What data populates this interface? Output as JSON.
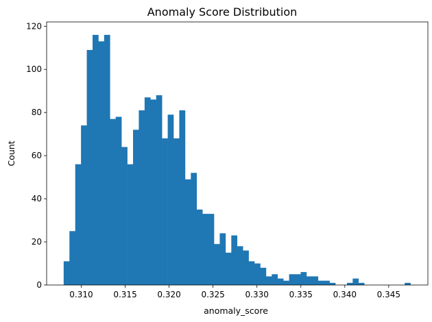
{
  "chart_data": {
    "type": "bar",
    "subtype": "histogram",
    "title": "Anomaly Score Distribution",
    "xlabel": "anomaly_score",
    "ylabel": "Count",
    "xlim": [
      0.30606,
      0.34946
    ],
    "ylim": [
      0,
      122
    ],
    "bins_start": 0.308,
    "bin_width": 0.000658,
    "values": [
      11,
      25,
      56,
      74,
      109,
      116,
      113,
      116,
      77,
      78,
      64,
      56,
      72,
      81,
      87,
      86,
      88,
      68,
      79,
      68,
      81,
      49,
      52,
      35,
      33,
      33,
      19,
      24,
      15,
      23,
      18,
      16,
      11,
      10,
      8,
      4,
      5,
      3,
      2,
      5,
      5,
      6,
      4,
      4,
      2,
      2,
      1,
      0,
      0,
      1,
      3,
      1,
      0,
      0,
      0,
      0,
      0,
      0,
      0,
      1
    ],
    "xticks": [
      0.31,
      0.315,
      0.32,
      0.325,
      0.33,
      0.335,
      0.34,
      0.345
    ],
    "xtick_labels": [
      "0.310",
      "0.315",
      "0.320",
      "0.325",
      "0.330",
      "0.335",
      "0.340",
      "0.345"
    ],
    "yticks": [
      0,
      20,
      40,
      60,
      80,
      100,
      120
    ],
    "ytick_labels": [
      "0",
      "20",
      "40",
      "60",
      "80",
      "100",
      "120"
    ],
    "grid": false,
    "bar_color": "#1f77b4"
  }
}
